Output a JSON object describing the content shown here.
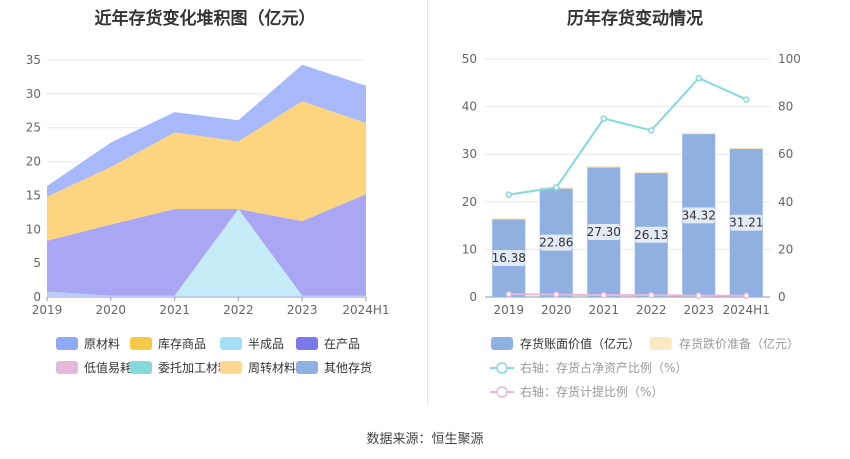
{
  "left_title": "近年存货变化堆积图（亿元）",
  "right_title": "历年存货变动情况",
  "source": "数据来源：恒生聚源",
  "chart_data": [
    {
      "type": "area",
      "stacked": true,
      "title": "近年存货变化堆积图（亿元）",
      "categories": [
        "2019",
        "2020",
        "2021",
        "2022",
        "2023",
        "2024H1"
      ],
      "ylim": [
        0,
        35
      ],
      "yticks": [
        0,
        5,
        10,
        15,
        20,
        25,
        30,
        35
      ],
      "series": [
        {
          "name": "原材料",
          "values": [
            0.8,
            0.2,
            0.2,
            0.2,
            0.2,
            0.2
          ]
        },
        {
          "name": "库存商品",
          "values": [
            0,
            0,
            0,
            0,
            0,
            0
          ]
        },
        {
          "name": "半成品",
          "values": [
            0,
            0,
            0,
            12.8,
            0,
            0
          ]
        },
        {
          "name": "在产品",
          "values": [
            7.5,
            10.5,
            12.8,
            0,
            11.0,
            15.0
          ]
        },
        {
          "name": "低值易耗品",
          "values": [
            0,
            0,
            0,
            0,
            0,
            0
          ]
        },
        {
          "name": "委托加工材料",
          "values": [
            0,
            0,
            0,
            0,
            0,
            0
          ]
        },
        {
          "name": "周转材料",
          "values": [
            6.5,
            8.5,
            11.3,
            10.0,
            17.7,
            10.5
          ]
        },
        {
          "name": "其他存货",
          "values": [
            1.6,
            3.6,
            3.0,
            3.1,
            5.4,
            5.5
          ]
        }
      ],
      "colors": {
        "原材料": "#8eaaf5",
        "库存商品": "#f7c948",
        "半成品": "#a6def7",
        "在产品": "#7b78ea",
        "低值易耗品": "#e6b8dc",
        "委托加工材料": "#86dada",
        "周转材料": "#fdd891",
        "其他存货": "#8fb0e0"
      },
      "fill_colors": {
        "原材料": "#bcccf6",
        "半成品": "#c6ecf8",
        "在产品": "#a9a6f4",
        "周转材料": "#fed57f",
        "其他存货": "#a8b9fb"
      },
      "legend": [
        "原材料",
        "库存商品",
        "半成品",
        "在产品",
        "低值易耗品",
        "委托加工材料",
        "周转材料",
        "其他存货"
      ]
    },
    {
      "type": "bar",
      "title": "历年存货变动情况",
      "categories": [
        "2019",
        "2020",
        "2021",
        "2022",
        "2023",
        "2024H1"
      ],
      "ylim": [
        0,
        50
      ],
      "yticks": [
        0,
        10,
        20,
        30,
        40,
        50
      ],
      "y2lim": [
        0,
        100
      ],
      "y2ticks": [
        0,
        20,
        40,
        60,
        80,
        100
      ],
      "series": [
        {
          "name": "存货账面价值（亿元）",
          "values": [
            16.38,
            22.86,
            27.3,
            26.13,
            34.32,
            31.21
          ],
          "labels": [
            "16.38",
            "22.86",
            "27.30",
            "26.13",
            "34.32",
            "31.21"
          ],
          "color": "#8fb0e0"
        },
        {
          "name": "存货跌价准备（亿元）",
          "values": [
            0.2,
            0.2,
            0.2,
            0.2,
            0.2,
            0.2
          ],
          "color": "#fde8c4"
        },
        {
          "name": "右轴：存货占净资产比例（%）",
          "axis": "right",
          "values": [
            43,
            46,
            75,
            70,
            92,
            83
          ],
          "color": "#86dada"
        },
        {
          "name": "右轴：存货计提比例（%）",
          "axis": "right",
          "values": [
            1.2,
            1.0,
            0.8,
            0.8,
            0.6,
            0.6
          ],
          "color": "#e6b8dc"
        }
      ]
    }
  ]
}
